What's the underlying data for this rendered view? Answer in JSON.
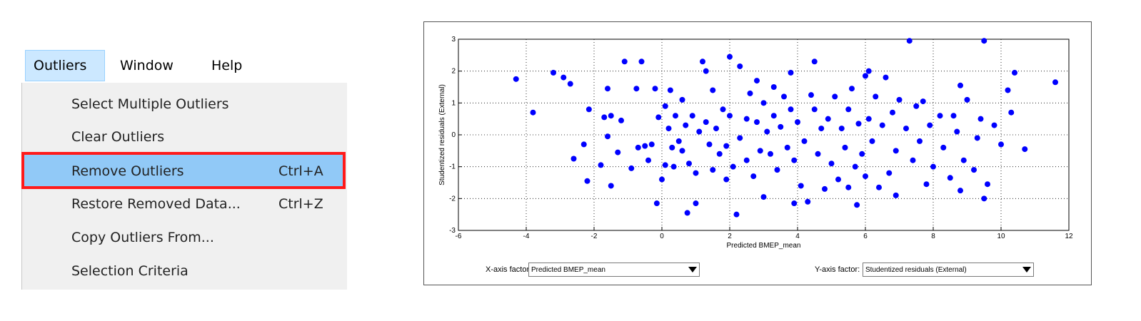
{
  "menu": {
    "bar": [
      "Outliers",
      "Window",
      "Help"
    ],
    "items": [
      {
        "label": "Select Multiple Outliers"
      },
      {
        "label": "Clear Outliers"
      },
      {
        "label": "Remove Outliers",
        "shortcut": "Ctrl+A"
      },
      {
        "label": "Restore Removed Data...",
        "shortcut": "Ctrl+Z"
      },
      {
        "label": "Copy Outliers From..."
      },
      {
        "label": "Selection Criteria"
      }
    ]
  },
  "chart_data": {
    "type": "scatter",
    "xlabel": "Predicted BMEP_mean",
    "ylabel": "Studentized residuals (External)",
    "color": "#0000ff",
    "grid": true,
    "xlim": [
      -6,
      12
    ],
    "xticks": [
      -6,
      -4,
      -2,
      0,
      2,
      4,
      6,
      8,
      10,
      12
    ],
    "ylim": [
      -3,
      3
    ],
    "yticks": [
      -3,
      -2,
      -1,
      0,
      1,
      2,
      3
    ],
    "x": [
      -4.3,
      -3.8,
      -3.2,
      -2.9,
      -2.7,
      -2.6,
      -2.3,
      -2.2,
      -2.15,
      -1.8,
      -1.7,
      -1.6,
      -1.6,
      -1.5,
      -1.5,
      -1.3,
      -1.2,
      -1.1,
      -0.9,
      -0.75,
      -0.7,
      -0.6,
      -0.5,
      -0.4,
      -0.3,
      -0.2,
      -0.15,
      -0.1,
      0.0,
      0.1,
      0.1,
      0.2,
      0.25,
      0.3,
      0.35,
      0.4,
      0.5,
      0.6,
      0.6,
      0.7,
      0.75,
      0.8,
      0.9,
      1.0,
      1.0,
      1.1,
      1.2,
      1.3,
      1.3,
      1.4,
      1.5,
      1.5,
      1.6,
      1.7,
      1.8,
      1.9,
      1.9,
      2.0,
      2.0,
      2.1,
      2.2,
      2.3,
      2.3,
      2.5,
      2.5,
      2.6,
      2.7,
      2.8,
      2.8,
      2.9,
      3.0,
      3.0,
      3.1,
      3.2,
      3.3,
      3.3,
      3.4,
      3.5,
      3.6,
      3.7,
      3.8,
      3.8,
      3.9,
      3.9,
      4.0,
      4.1,
      4.2,
      4.3,
      4.4,
      4.5,
      4.5,
      4.6,
      4.7,
      4.8,
      4.9,
      5.0,
      5.1,
      5.2,
      5.3,
      5.4,
      5.5,
      5.5,
      5.6,
      5.7,
      5.75,
      5.8,
      5.9,
      6.0,
      6.0,
      6.1,
      6.1,
      6.2,
      6.3,
      6.4,
      6.5,
      6.6,
      6.7,
      6.8,
      6.9,
      6.9,
      7.0,
      7.2,
      7.3,
      7.4,
      7.5,
      7.6,
      7.7,
      7.8,
      7.9,
      8.0,
      8.2,
      8.3,
      8.5,
      8.6,
      8.7,
      8.8,
      8.8,
      8.9,
      9.0,
      9.2,
      9.3,
      9.4,
      9.5,
      9.5,
      9.6,
      9.8,
      10.0,
      10.2,
      10.3,
      10.4,
      10.7,
      11.6
    ],
    "values": [
      1.75,
      0.7,
      1.95,
      1.8,
      1.6,
      -0.75,
      -0.3,
      -1.45,
      0.8,
      -0.95,
      0.55,
      1.45,
      -0.05,
      -1.6,
      0.6,
      -0.55,
      0.45,
      2.3,
      -1.05,
      1.45,
      -0.4,
      2.3,
      -0.35,
      -0.8,
      -0.3,
      1.45,
      -2.15,
      0.55,
      -1.4,
      0.9,
      -0.95,
      0.2,
      1.4,
      -0.4,
      -1.0,
      0.6,
      -0.2,
      1.1,
      -0.5,
      0.3,
      -2.45,
      -0.9,
      0.6,
      -1.2,
      -2.15,
      0.1,
      2.3,
      2.0,
      0.4,
      -0.3,
      -1.1,
      1.4,
      0.2,
      -0.6,
      0.8,
      -1.4,
      -0.35,
      2.45,
      0.6,
      -1.0,
      -2.5,
      2.15,
      -0.1,
      0.5,
      -0.8,
      1.3,
      -1.3,
      0.4,
      1.7,
      -0.5,
      1.0,
      -1.95,
      0.1,
      -0.6,
      1.5,
      0.6,
      -1.1,
      0.25,
      1.2,
      -0.4,
      0.8,
      1.95,
      -2.15,
      -0.8,
      0.4,
      -1.6,
      -0.2,
      -2.1,
      1.25,
      0.8,
      2.3,
      -0.6,
      0.2,
      -1.7,
      0.5,
      -0.9,
      1.2,
      -1.4,
      0.2,
      -0.4,
      -1.65,
      0.8,
      1.45,
      -1.0,
      -2.2,
      0.35,
      -0.6,
      1.85,
      -1.3,
      2.0,
      0.5,
      -0.2,
      1.2,
      -1.65,
      0.3,
      1.8,
      -1.2,
      0.7,
      -1.9,
      -0.5,
      1.1,
      0.2,
      2.95,
      -0.8,
      0.9,
      -0.2,
      1.05,
      -1.55,
      0.3,
      -1.0,
      0.6,
      -0.4,
      -1.35,
      0.6,
      0.1,
      -1.75,
      1.55,
      -0.8,
      1.1,
      -1.1,
      -0.1,
      0.5,
      -2.0,
      2.95,
      -1.55,
      0.3,
      -0.3,
      1.4,
      0.7,
      1.95,
      -0.45,
      1.65
    ]
  },
  "x_factor": {
    "label": "X-axis factor:",
    "value": "Predicted BMEP_mean"
  },
  "y_factor": {
    "label": "Y-axis factor:",
    "value": "Studentized residuals (External)"
  }
}
